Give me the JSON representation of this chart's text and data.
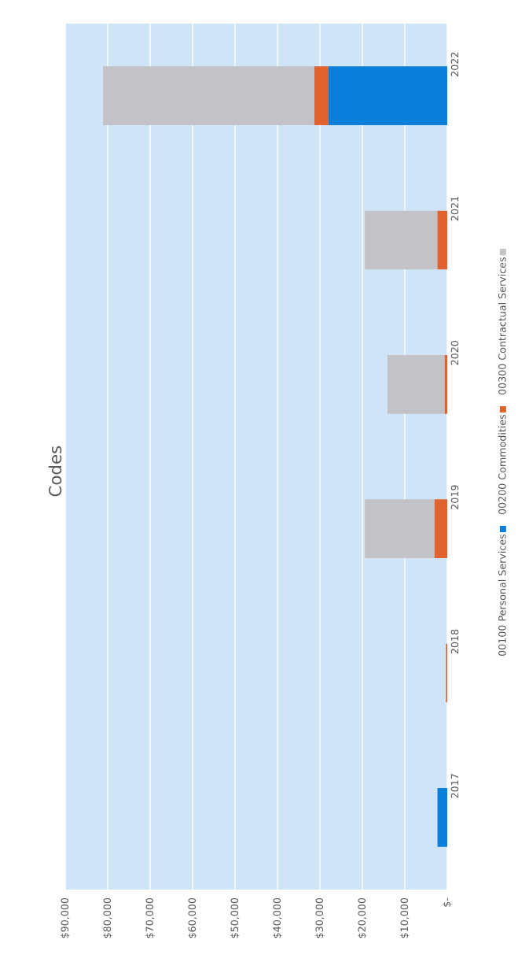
{
  "chart_data": {
    "type": "bar",
    "title": "Codes",
    "stacked": true,
    "grid": "x",
    "legend": "right",
    "orientation": "horizontal",
    "categories": [
      "2022",
      "2021",
      "2020",
      "2019",
      "2018",
      "2017"
    ],
    "series": [
      {
        "name": "00100 Personal Services",
        "color": "#0a7fd9",
        "values": [
          28000,
          0,
          0,
          0,
          0,
          2300
        ]
      },
      {
        "name": "00200 Commodities",
        "color": "#e0622e",
        "values": [
          3300,
          2300,
          600,
          3000,
          300,
          0
        ]
      },
      {
        "name": "00300 Contractual Services",
        "color": "#c3c2c6",
        "values": [
          49800,
          17100,
          13500,
          16400,
          0,
          0
        ]
      }
    ],
    "xlim": [
      90000,
      0
    ],
    "xticks": [
      {
        "value": 0,
        "label": "$-"
      },
      {
        "value": 10000,
        "label": "$10,000"
      },
      {
        "value": 20000,
        "label": "$20,000"
      },
      {
        "value": 30000,
        "label": "$30,000"
      },
      {
        "value": 40000,
        "label": "$40,000"
      },
      {
        "value": 50000,
        "label": "$50,000"
      },
      {
        "value": 60000,
        "label": "$60,000"
      },
      {
        "value": 70000,
        "label": "$70,000"
      },
      {
        "value": 80000,
        "label": "$80,000"
      },
      {
        "value": 90000,
        "label": "$90,000"
      }
    ]
  }
}
